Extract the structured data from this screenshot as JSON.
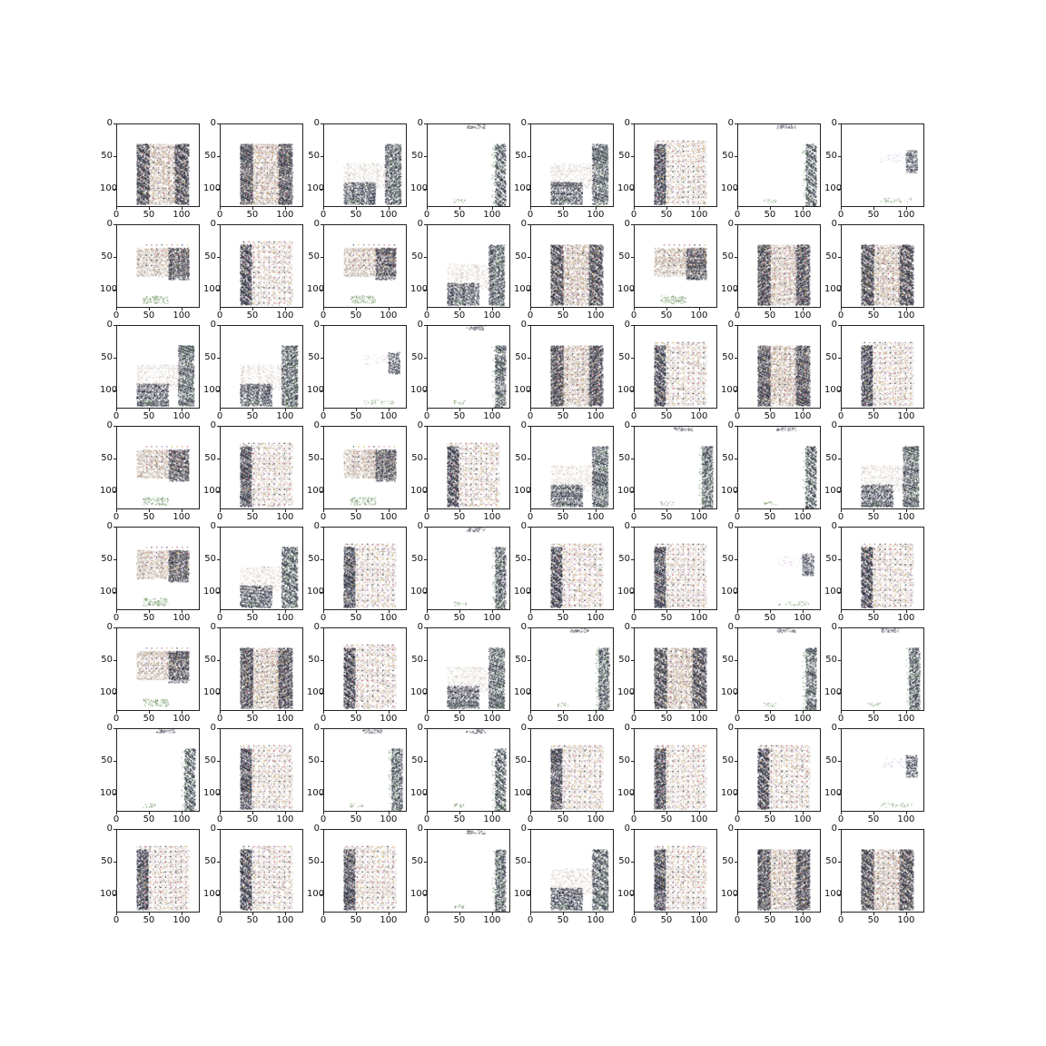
{
  "figure": {
    "rows": 8,
    "cols": 8,
    "x_ticks": [
      "0",
      "50",
      "100"
    ],
    "y_ticks": [
      "0",
      "50",
      "100"
    ],
    "axis_range": [
      0,
      128
    ],
    "colors": {
      "dark": "#1d2233",
      "brown": "#7a5a40",
      "purple": "#8a5aa8",
      "green": "#4a7a3a"
    },
    "panels": [
      {
        "shape": "block"
      },
      {
        "shape": "block"
      },
      {
        "shape": "corner"
      },
      {
        "shape": "edge"
      },
      {
        "shape": "corner"
      },
      {
        "shape": "grid"
      },
      {
        "shape": "edge"
      },
      {
        "shape": "sparse"
      },
      {
        "shape": "top"
      },
      {
        "shape": "grid"
      },
      {
        "shape": "top"
      },
      {
        "shape": "corner"
      },
      {
        "shape": "block"
      },
      {
        "shape": "top"
      },
      {
        "shape": "block"
      },
      {
        "shape": "block"
      },
      {
        "shape": "corner"
      },
      {
        "shape": "corner"
      },
      {
        "shape": "sparse"
      },
      {
        "shape": "edge"
      },
      {
        "shape": "block"
      },
      {
        "shape": "grid"
      },
      {
        "shape": "block"
      },
      {
        "shape": "grid"
      },
      {
        "shape": "top"
      },
      {
        "shape": "grid"
      },
      {
        "shape": "top"
      },
      {
        "shape": "grid"
      },
      {
        "shape": "corner"
      },
      {
        "shape": "edge"
      },
      {
        "shape": "edge"
      },
      {
        "shape": "corner"
      },
      {
        "shape": "top"
      },
      {
        "shape": "corner"
      },
      {
        "shape": "grid"
      },
      {
        "shape": "edge"
      },
      {
        "shape": "grid"
      },
      {
        "shape": "grid"
      },
      {
        "shape": "sparse"
      },
      {
        "shape": "grid"
      },
      {
        "shape": "top"
      },
      {
        "shape": "block"
      },
      {
        "shape": "grid"
      },
      {
        "shape": "corner"
      },
      {
        "shape": "edge"
      },
      {
        "shape": "block"
      },
      {
        "shape": "edge"
      },
      {
        "shape": "edge"
      },
      {
        "shape": "edge"
      },
      {
        "shape": "grid"
      },
      {
        "shape": "edge"
      },
      {
        "shape": "edge"
      },
      {
        "shape": "grid"
      },
      {
        "shape": "grid"
      },
      {
        "shape": "grid"
      },
      {
        "shape": "sparse"
      },
      {
        "shape": "grid"
      },
      {
        "shape": "grid"
      },
      {
        "shape": "grid"
      },
      {
        "shape": "edge"
      },
      {
        "shape": "corner"
      },
      {
        "shape": "grid"
      },
      {
        "shape": "block"
      },
      {
        "shape": "block"
      }
    ]
  }
}
